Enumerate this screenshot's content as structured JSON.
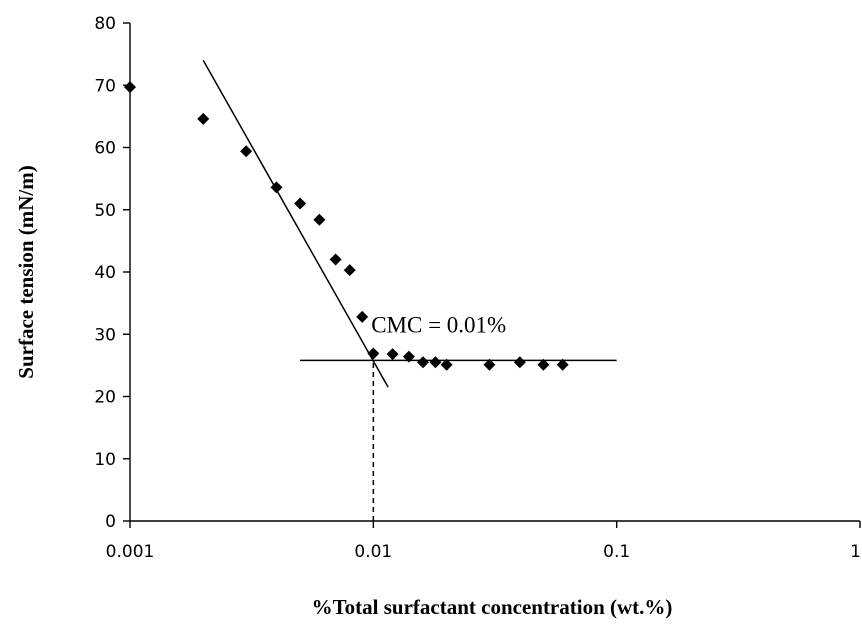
{
  "chart_data": {
    "type": "scatter",
    "title": "",
    "xlabel": "%Total surfactant concentration (wt.%)",
    "ylabel": "Surface tension (mN/m)",
    "xscale": "log",
    "xlim": [
      0.001,
      1
    ],
    "ylim": [
      0,
      80
    ],
    "x_ticks": [
      0.001,
      0.01,
      0.1,
      1
    ],
    "x_tick_labels": [
      "0.001",
      "0.01",
      "0.1",
      "1"
    ],
    "y_ticks": [
      0,
      10,
      20,
      30,
      40,
      50,
      60,
      70,
      80
    ],
    "y_tick_labels": [
      "0",
      "10",
      "20",
      "30",
      "40",
      "50",
      "60",
      "70",
      "80"
    ],
    "grid": false,
    "legend": "none",
    "marker": "diamond",
    "marker_color": "#000000",
    "series": [
      {
        "x": [
          0.001,
          0.002,
          0.003,
          0.004,
          0.005,
          0.006,
          0.007,
          0.008,
          0.009,
          0.01,
          0.012,
          0.014,
          0.016,
          0.018,
          0.02,
          0.03,
          0.04,
          0.05,
          0.06
        ],
        "y": [
          69.7,
          64.6,
          59.4,
          53.6,
          51.0,
          48.4,
          42.0,
          40.3,
          32.8,
          26.9,
          26.8,
          26.4,
          25.5,
          25.5,
          25.1,
          25.1,
          25.5,
          25.1,
          25.1
        ]
      }
    ],
    "fit_lines": [
      {
        "x": [
          0.002,
          0.0115
        ],
        "y": [
          74.0,
          21.5
        ]
      },
      {
        "x": [
          0.005,
          0.1
        ],
        "y": [
          25.8,
          25.8
        ]
      }
    ],
    "reference_lines": [
      {
        "x": [
          0.01,
          0.01
        ],
        "y": [
          0,
          25.8
        ],
        "style": "dashed"
      }
    ],
    "annotations": [
      {
        "text": "CMC = 0.01%",
        "x": 0.0098,
        "y": 30.3
      }
    ]
  }
}
